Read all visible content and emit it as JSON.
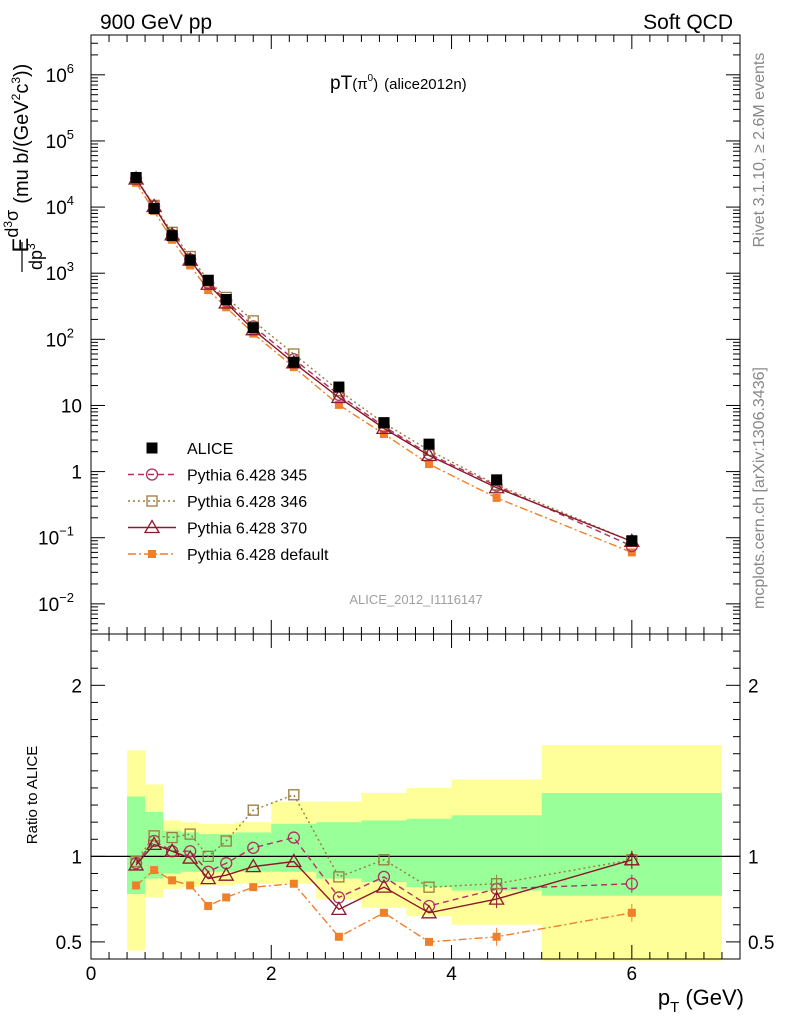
{
  "header": {
    "left": "900 GeV pp",
    "right": "Soft QCD"
  },
  "side_labels": {
    "rivet": "Rivet 3.1.10, ≥ 2.6M events",
    "mcplots": "mcplots.cern.ch [arXiv:1306.3436]"
  },
  "chart_data": [
    {
      "type": "scatter",
      "title": "pT(π⁰) (alice2012n)",
      "title_main": "pT",
      "title_pi": "π",
      "title_sup": "0",
      "title_tail": "(alice2012n)",
      "watermark": "ALICE_2012_I1116147",
      "ylabel": "E d³σ/dp³ (mu b/(GeV²c³))",
      "ylabel_parts": {
        "e": "E",
        "num": "σ",
        "d": "d",
        "three": "3",
        "den": "dp",
        "den_exp": "3",
        "unit_a": "(mu b/(GeV",
        "unit_b": "c",
        "unit_c": "))",
        "two": "2",
        "three_b": "3"
      },
      "y_scale": "log",
      "ylim": [
        0.0035,
        4000000
      ],
      "xlim": [
        0,
        7.2
      ],
      "y_ticks": [
        {
          "v": 0.01,
          "mant": "10",
          "exp": "−2"
        },
        {
          "v": 0.1,
          "mant": "10",
          "exp": "−1"
        },
        {
          "v": 1,
          "mant": "1",
          "exp": ""
        },
        {
          "v": 10,
          "mant": "10",
          "exp": ""
        },
        {
          "v": 100,
          "mant": "10",
          "exp": "2"
        },
        {
          "v": 1000,
          "mant": "10",
          "exp": "3"
        },
        {
          "v": 10000,
          "mant": "10",
          "exp": "4"
        },
        {
          "v": 100000,
          "mant": "10",
          "exp": "5"
        },
        {
          "v": 1000000,
          "mant": "10",
          "exp": "6"
        }
      ],
      "x": [
        0.5,
        0.7,
        0.9,
        1.1,
        1.3,
        1.5,
        1.8,
        2.25,
        2.75,
        3.25,
        3.75,
        4.5,
        6.0
      ],
      "legend_placement": "lower-left",
      "series": [
        {
          "name": "ALICE",
          "color": "#000000",
          "marker": "filled-square",
          "line": "none",
          "values": [
            28000,
            9500,
            3700,
            1580,
            780,
            400,
            150,
            45,
            19,
            5.5,
            2.6,
            0.75,
            0.09
          ]
        },
        {
          "name": "Pythia 6.428 345",
          "color": "#b03060",
          "marker": "open-circle",
          "line": "dashed",
          "values": [
            27000,
            10300,
            3800,
            1620,
            710,
            385,
            157,
            50,
            14.5,
            4.8,
            1.85,
            0.61,
            0.075
          ]
        },
        {
          "name": "Pythia 6.428 346",
          "color": "#9a7b3c",
          "marker": "open-square",
          "line": "dotted",
          "values": [
            27200,
            10600,
            4150,
            1790,
            780,
            430,
            190,
            60,
            16.8,
            5.4,
            2.1,
            0.63,
            0.088
          ]
        },
        {
          "name": "Pythia 6.428 370",
          "color": "#8b1a2a",
          "marker": "open-triangle",
          "line": "solid",
          "values": [
            26600,
            10200,
            3800,
            1580,
            680,
            355,
            140,
            44,
            13.2,
            4.5,
            1.75,
            0.57,
            0.088
          ]
        },
        {
          "name": "Pythia 6.428 default",
          "color": "#f07f2a",
          "marker": "filled-square-small",
          "line": "dashdot",
          "values": [
            23300,
            8700,
            3200,
            1310,
            555,
            305,
            122,
            38,
            10.2,
            3.7,
            1.3,
            0.4,
            0.06
          ]
        }
      ]
    },
    {
      "type": "scatter",
      "title": "",
      "ylabel": "Ratio to ALICE",
      "xlabel": "p_T (GeV)",
      "xlabel_parts": {
        "p": "p",
        "sub": "T",
        "unit": "(GeV)"
      },
      "xlim": [
        0,
        7.2
      ],
      "ylim": [
        0.4,
        2.3
      ],
      "x_ticks": [
        0,
        2,
        4,
        6
      ],
      "y_ticks": [
        0.5,
        1,
        2
      ],
      "y_tick_labels": [
        "0.5",
        "1",
        "2"
      ],
      "reference_line": 1,
      "band_edges": [
        0.4,
        0.6,
        0.8,
        1.0,
        1.2,
        1.4,
        1.6,
        2.0,
        2.5,
        3.0,
        3.5,
        4.0,
        5.0,
        7.0
      ],
      "band_yellow": [
        [
          0.45,
          1.62
        ],
        [
          0.76,
          1.42
        ],
        [
          0.81,
          1.21
        ],
        [
          0.82,
          1.2
        ],
        [
          0.83,
          1.19
        ],
        [
          0.83,
          1.19
        ],
        [
          0.84,
          1.2
        ],
        [
          0.84,
          1.32
        ],
        [
          0.75,
          1.32
        ],
        [
          0.7,
          1.37
        ],
        [
          0.65,
          1.4
        ],
        [
          0.6,
          1.45
        ],
        [
          0.39,
          1.65
        ]
      ],
      "band_green": [
        [
          0.78,
          1.35
        ],
        [
          0.87,
          1.26
        ],
        [
          0.9,
          1.15
        ],
        [
          0.91,
          1.14
        ],
        [
          0.91,
          1.13
        ],
        [
          0.91,
          1.13
        ],
        [
          0.91,
          1.14
        ],
        [
          0.91,
          1.19
        ],
        [
          0.87,
          1.2
        ],
        [
          0.85,
          1.21
        ],
        [
          0.82,
          1.22
        ],
        [
          0.8,
          1.24
        ],
        [
          0.77,
          1.37
        ]
      ],
      "band_colors": {
        "yellow": "#ffff99",
        "green": "#99ff99"
      },
      "series": [
        {
          "name": "Pythia 6.428 345",
          "values": [
            0.96,
            1.09,
            1.03,
            1.03,
            0.91,
            0.96,
            1.05,
            1.11,
            0.76,
            0.88,
            0.71,
            0.81,
            0.84
          ]
        },
        {
          "name": "Pythia 6.428 346",
          "values": [
            0.97,
            1.12,
            1.11,
            1.13,
            1.0,
            1.09,
            1.27,
            1.36,
            0.88,
            0.98,
            0.82,
            0.84,
            0.98
          ]
        },
        {
          "name": "Pythia 6.428 370",
          "values": [
            0.95,
            1.07,
            1.03,
            0.99,
            0.87,
            0.89,
            0.94,
            0.97,
            0.69,
            0.82,
            0.67,
            0.75,
            0.98
          ]
        },
        {
          "name": "Pythia 6.428 default",
          "values": [
            0.83,
            0.92,
            0.86,
            0.83,
            0.71,
            0.76,
            0.82,
            0.84,
            0.53,
            0.67,
            0.5,
            0.53,
            0.67
          ]
        }
      ]
    }
  ]
}
